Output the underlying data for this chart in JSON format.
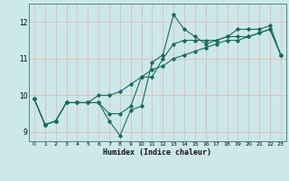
{
  "xlabel": "Humidex (Indice chaleur)",
  "background_color": "#cce8ea",
  "grid_color": "#e8b0b0",
  "line_color": "#1a6b5a",
  "xlim": [
    -0.5,
    23.5
  ],
  "ylim": [
    8.75,
    12.5
  ],
  "yticks": [
    9,
    10,
    11,
    12
  ],
  "xticks": [
    0,
    1,
    2,
    3,
    4,
    5,
    6,
    7,
    8,
    9,
    10,
    11,
    12,
    13,
    14,
    15,
    16,
    17,
    18,
    19,
    20,
    21,
    22,
    23
  ],
  "xtick_labels": [
    "0",
    "1",
    "2",
    "3",
    "4",
    "5",
    "6",
    "7",
    "8",
    "9",
    "10",
    "11",
    "12",
    "13",
    "14",
    "15",
    "16",
    "17",
    "18",
    "19",
    "20",
    "21",
    "22",
    "23"
  ],
  "series1": [
    9.9,
    9.2,
    9.3,
    9.8,
    9.8,
    9.8,
    9.8,
    9.3,
    8.9,
    9.6,
    9.7,
    10.9,
    11.1,
    12.2,
    11.8,
    11.6,
    11.4,
    11.5,
    11.6,
    11.8,
    11.8,
    11.8,
    11.9,
    11.1
  ],
  "series2": [
    9.9,
    9.2,
    9.3,
    9.8,
    9.8,
    9.8,
    9.8,
    9.5,
    9.5,
    9.7,
    10.5,
    10.5,
    11.0,
    11.4,
    11.5,
    11.5,
    11.5,
    11.5,
    11.6,
    11.6,
    11.6,
    11.7,
    11.8,
    11.1
  ],
  "series3": [
    9.9,
    9.2,
    9.3,
    9.8,
    9.8,
    9.8,
    10.0,
    10.0,
    10.1,
    10.3,
    10.5,
    10.7,
    10.8,
    11.0,
    11.1,
    11.2,
    11.3,
    11.4,
    11.5,
    11.5,
    11.6,
    11.7,
    11.8,
    11.1
  ]
}
